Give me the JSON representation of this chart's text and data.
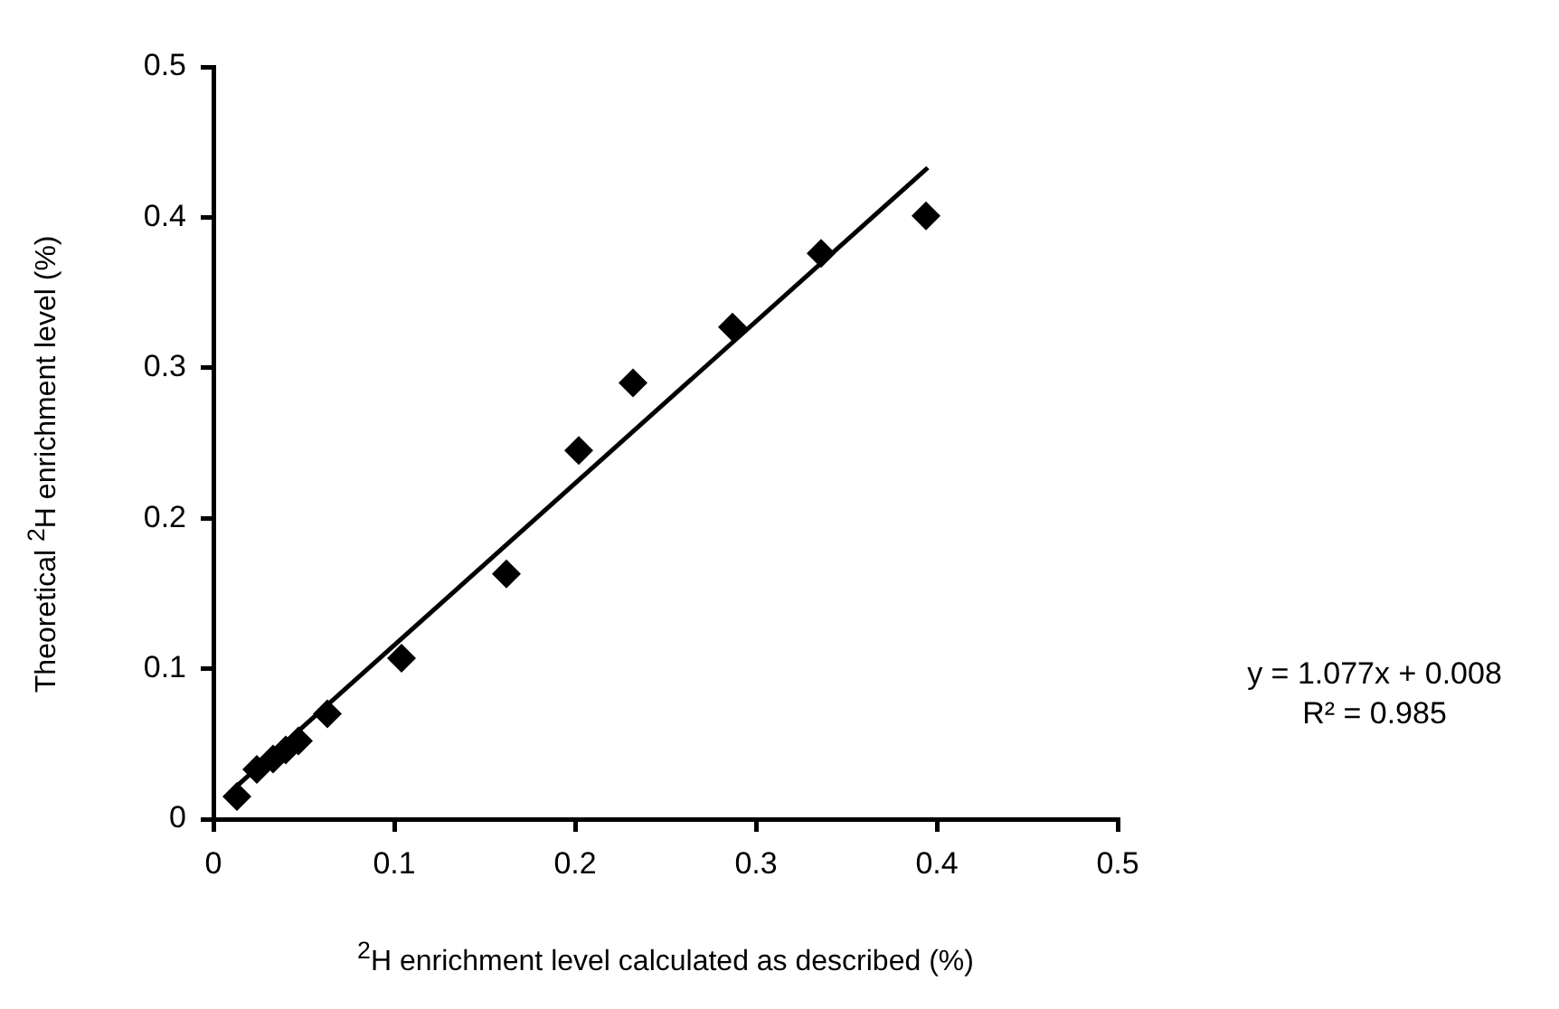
{
  "chart_data": {
    "type": "scatter",
    "xlabel": "$^{2}$H enrichment level calculated as described (%)",
    "ylabel": "Theoretical $^{2}$H enrichment level (%)",
    "xlim": [
      0,
      0.5
    ],
    "xticks": [
      0,
      0.1,
      0.2,
      0.3,
      0.4,
      0.5
    ],
    "ylim": [
      0,
      0.5
    ],
    "yticks": [
      0,
      0.1,
      0.2,
      0.3,
      0.4,
      0.5
    ],
    "grid": false,
    "legend": false,
    "series": [
      {
        "type": "scatter",
        "marker": "diamond",
        "color": "#000000",
        "x": [
          0.013,
          0.024,
          0.033,
          0.04,
          0.047,
          0.063,
          0.104,
          0.162,
          0.202,
          0.232,
          0.287,
          0.336,
          0.394
        ],
        "values": [
          0.015,
          0.033,
          0.04,
          0.046,
          0.052,
          0.07,
          0.107,
          0.163,
          0.245,
          0.29,
          0.327,
          0.376,
          0.401
        ]
      },
      {
        "type": "line",
        "marker": "none",
        "color": "#000000",
        "x": [
          0.012,
          0.395
        ],
        "values": [
          0.021,
          0.433
        ]
      }
    ],
    "annotations": [
      "y = 1.077x + 0.008",
      "R² = 0.985"
    ]
  }
}
